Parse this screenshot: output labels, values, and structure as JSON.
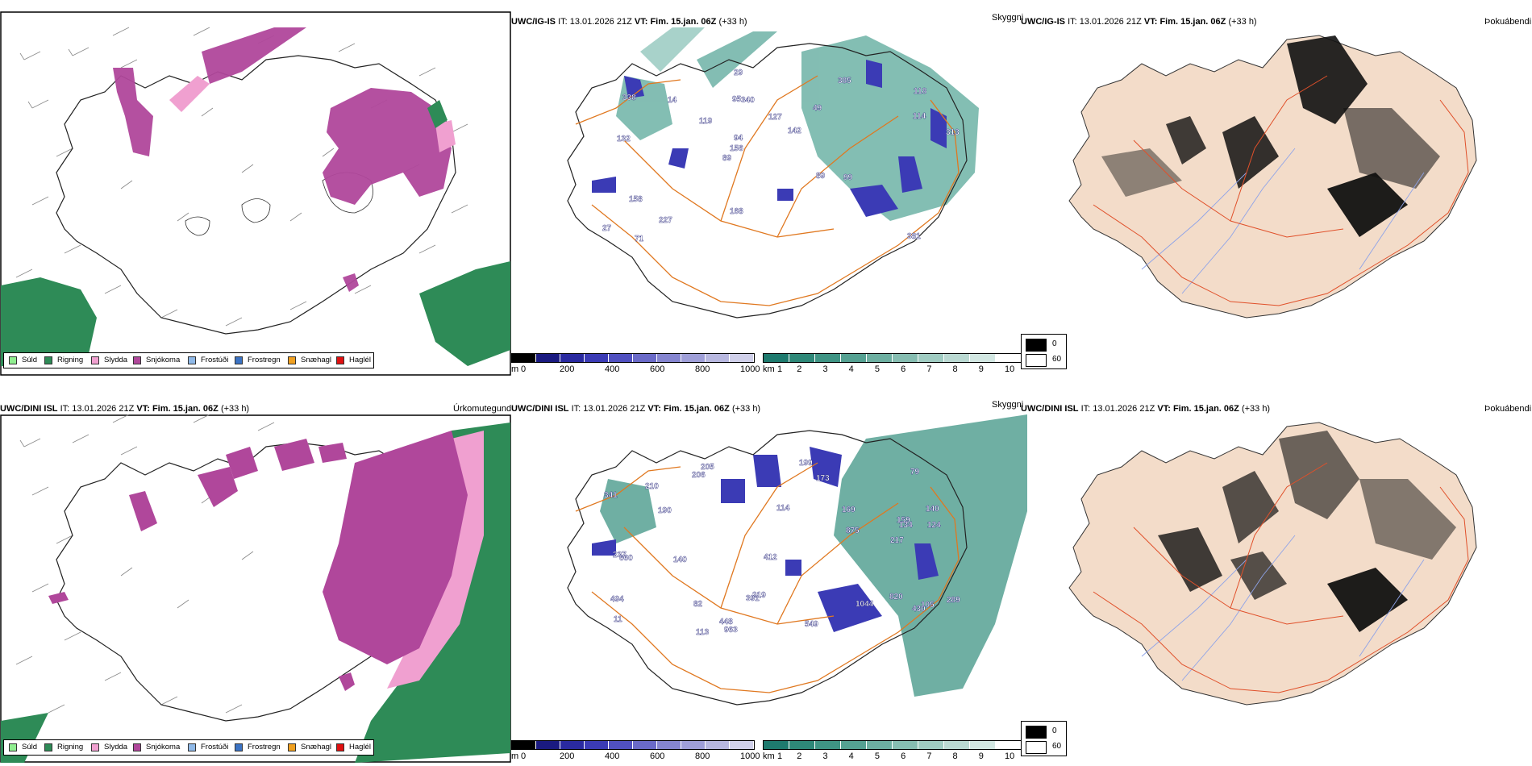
{
  "panels": [
    {
      "row": "top",
      "model": "UWC/IG-IS",
      "it_label": "IT:",
      "it_value": "13.01.2026 21Z",
      "vt_label": "VT:",
      "vt_value": "Fim. 15.jan. 06Z",
      "lead": "(+33 h)"
    },
    {
      "row": "bottom",
      "model": "UWC/DINI ISL",
      "it_label": "IT:",
      "it_value": "13.01.2026 21Z",
      "vt_label": "VT:",
      "vt_value": "Fim. 15.jan. 06Z",
      "lead": "(+33 h)"
    }
  ],
  "titles": {
    "precip_type": "Úrkomutegund",
    "visibility": "Skyggni",
    "cloud_cover": "Þokuábendi"
  },
  "precip_legend": [
    {
      "label": "Súld",
      "color": "#90ee90"
    },
    {
      "label": "Rigning",
      "color": "#2e8b57"
    },
    {
      "label": "Slydda",
      "color": "#f0a0d0"
    },
    {
      "label": "Snjókoma",
      "color": "#b0479b"
    },
    {
      "label": "Frostúði",
      "color": "#8fb9e8"
    },
    {
      "label": "Frostregn",
      "color": "#3b73c4"
    },
    {
      "label": "Snæhagl",
      "color": "#f0a020"
    },
    {
      "label": "Haglél",
      "color": "#e01010"
    }
  ],
  "ceiling_bar": {
    "unit": "m",
    "ticks": [
      "0",
      "200",
      "400",
      "600",
      "800",
      "1000"
    ],
    "colors": [
      "#000000",
      "#1a1a80",
      "#2a2aa0",
      "#3b3bb5",
      "#5050c0",
      "#6a6ac8",
      "#8585d0",
      "#9f9fd8",
      "#b8b8e0",
      "#d0d0ea"
    ]
  },
  "visibility_bar": {
    "unit": "km",
    "ticks": [
      "1",
      "2",
      "3",
      "4",
      "5",
      "6",
      "7",
      "8",
      "9",
      "10"
    ],
    "colors": [
      "#1e7a6e",
      "#2e8878",
      "#3f9484",
      "#55a192",
      "#6dafa1",
      "#86bdb1",
      "#a0ccc2",
      "#bad9d2",
      "#d2e7e2",
      "#ffffff"
    ]
  },
  "fog_legend": [
    {
      "label": "0",
      "color": "#000000"
    },
    {
      "label": "60",
      "color": "#ffffff"
    }
  ],
  "ceiling_labels": {
    "top": [
      "381",
      "132",
      "118",
      "89",
      "49",
      "71",
      "95",
      "127",
      "158",
      "119",
      "27",
      "227",
      "340",
      "142",
      "99",
      "338",
      "29",
      "313",
      "89",
      "114",
      "156",
      "168",
      "94",
      "14",
      "385"
    ],
    "bottom": [
      "820",
      "140",
      "105",
      "114",
      "11",
      "205",
      "159",
      "82",
      "79",
      "190",
      "124",
      "341",
      "217",
      "963",
      "494",
      "210",
      "430",
      "206",
      "219",
      "134",
      "237",
      "660",
      "549",
      "875",
      "448",
      "391",
      "199",
      "173",
      "169",
      "289",
      "140",
      "1044",
      "113",
      "412"
    ]
  }
}
